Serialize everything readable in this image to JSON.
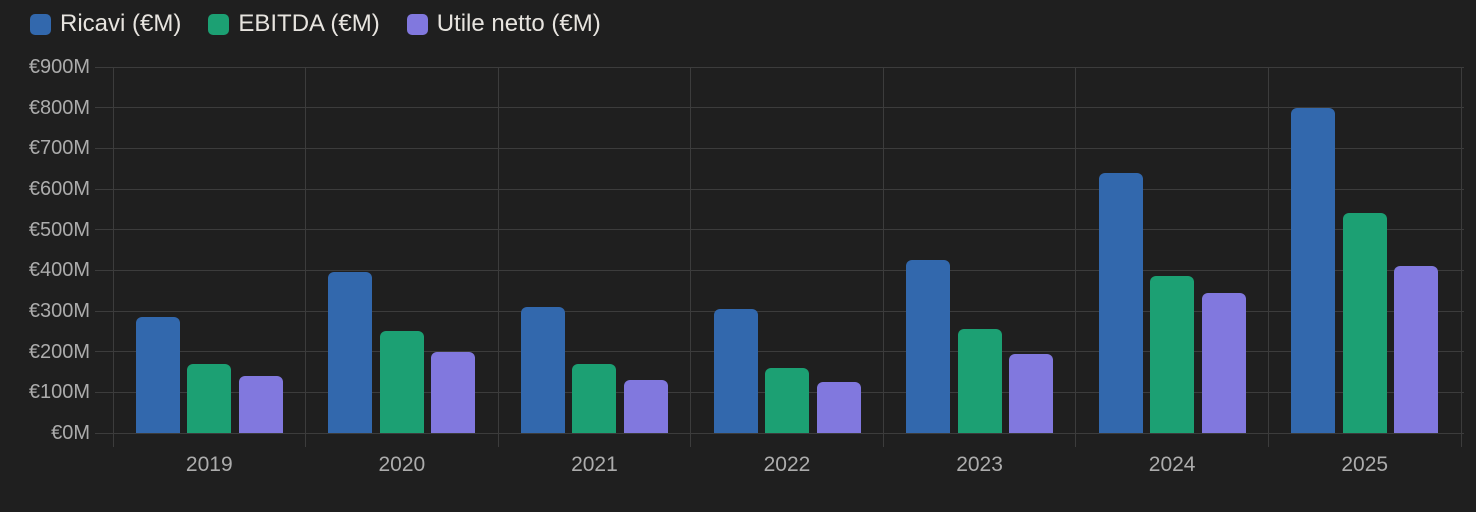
{
  "colors": {
    "background": "#1f1f1f",
    "grid": "#3c3c3c",
    "axis_text": "#acacac",
    "legend_text": "#e7e4df",
    "ricavi": "#3268ad",
    "ebitda": "#1ca073",
    "utile_netto": "#8178de"
  },
  "legend": {
    "items": [
      {
        "label": "Ricavi (€M)",
        "color": "#3268ad"
      },
      {
        "label": "EBITDA (€M)",
        "color": "#1ca073"
      },
      {
        "label": "Utile netto (€M)",
        "color": "#8178de"
      }
    ]
  },
  "chart_data": {
    "type": "bar",
    "title": "",
    "xlabel": "",
    "ylabel": "",
    "categories": [
      "2019",
      "2020",
      "2021",
      "2022",
      "2023",
      "2024",
      "2025"
    ],
    "series": [
      {
        "name": "Ricavi (€M)",
        "color": "#3268ad",
        "values": [
          285,
          395,
          310,
          305,
          425,
          640,
          800
        ]
      },
      {
        "name": "EBITDA (€M)",
        "color": "#1ca073",
        "values": [
          170,
          250,
          170,
          160,
          255,
          385,
          540
        ]
      },
      {
        "name": "Utile netto (€M)",
        "color": "#8178de",
        "values": [
          140,
          200,
          130,
          125,
          195,
          345,
          410
        ]
      }
    ],
    "ylim": [
      0,
      900
    ],
    "ytick_step": 100,
    "ytick_labels": [
      "€0M",
      "€100M",
      "€200M",
      "€300M",
      "€400M",
      "€500M",
      "€600M",
      "€700M",
      "€800M",
      "€900M"
    ],
    "grid": true,
    "legend_position": "top-left"
  }
}
